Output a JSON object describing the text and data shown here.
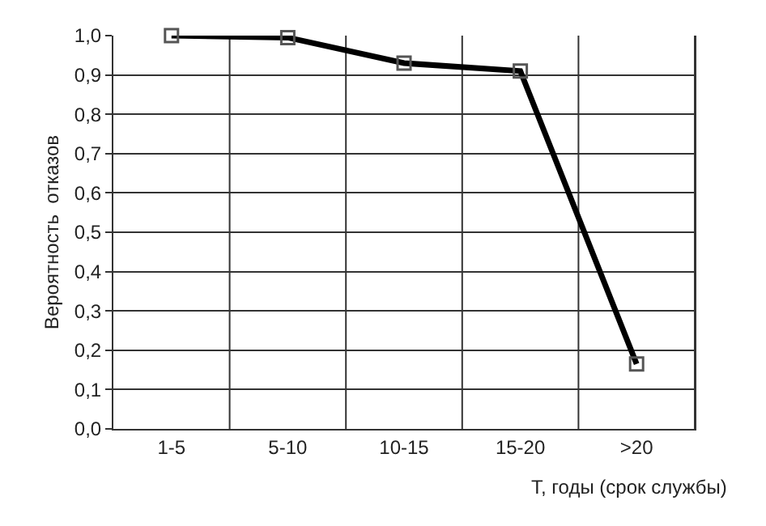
{
  "chart_data": {
    "type": "line",
    "ylabel": "Вероятность  отказов",
    "xlabel": "T, годы (срок службы)",
    "categories": [
      "1-5",
      "5-10",
      "10-15",
      "15-20",
      ">20"
    ],
    "series": [
      {
        "color": "#000000",
        "values": [
          1.0,
          0.995,
          0.93,
          0.91,
          0.165
        ]
      }
    ],
    "ylim": [
      0,
      1
    ],
    "yticks": [
      {
        "value": 0,
        "label": "0,0"
      },
      {
        "value": 0.1,
        "label": "0,1"
      },
      {
        "value": 0.2,
        "label": "0,2"
      },
      {
        "value": 0.3,
        "label": "0,3"
      },
      {
        "value": 0.4,
        "label": "0,4"
      },
      {
        "value": 0.5,
        "label": "0,5"
      },
      {
        "value": 0.6,
        "label": "0,6"
      },
      {
        "value": 0.7,
        "label": "0,7"
      },
      {
        "value": 0.8,
        "label": "0,8"
      },
      {
        "value": 0.9,
        "label": "0,9"
      },
      {
        "value": 1,
        "label": "1,0"
      }
    ],
    "grid": true,
    "marker": "square",
    "line_style": "solid"
  }
}
